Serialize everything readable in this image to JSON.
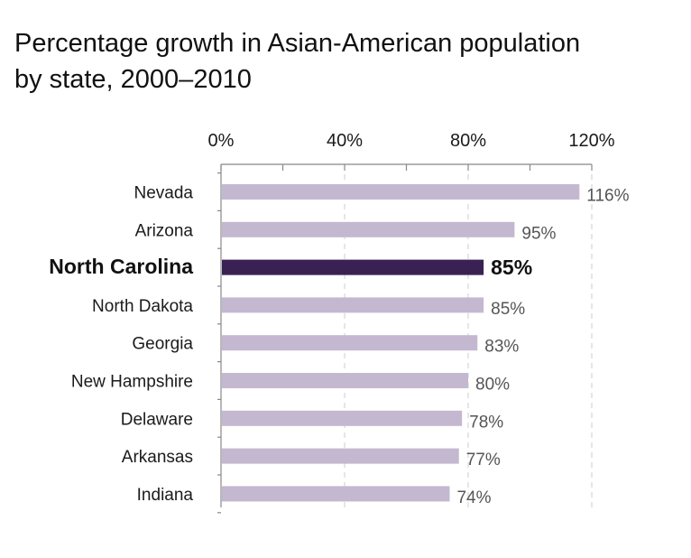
{
  "chart_data": {
    "type": "bar",
    "orientation": "horizontal",
    "title": "Percentage growth in Asian-American population",
    "subtitle": "by state, 2000–2010",
    "categories": [
      "Nevada",
      "Arizona",
      "North Carolina",
      "North Dakota",
      "Georgia",
      "New Hampshire",
      "Delaware",
      "Arkansas",
      "Indiana"
    ],
    "values": [
      116,
      95,
      85,
      85,
      83,
      80,
      78,
      77,
      74
    ],
    "value_labels": [
      "116%",
      "95%",
      "85%",
      "85%",
      "83%",
      "80%",
      "78%",
      "77%",
      "74%"
    ],
    "highlight": "North Carolina",
    "xlim": [
      0,
      120
    ],
    "x_ticks": [
      0,
      40,
      80,
      120
    ],
    "x_tick_labels": [
      "0%",
      "40%",
      "80%",
      "120%"
    ],
    "xlabel": "",
    "ylabel": "",
    "grid": true,
    "colors": {
      "bar": "#c4b8d0",
      "highlight_bar": "#392253",
      "grid": "#cccccc",
      "axis": "#888888"
    }
  }
}
